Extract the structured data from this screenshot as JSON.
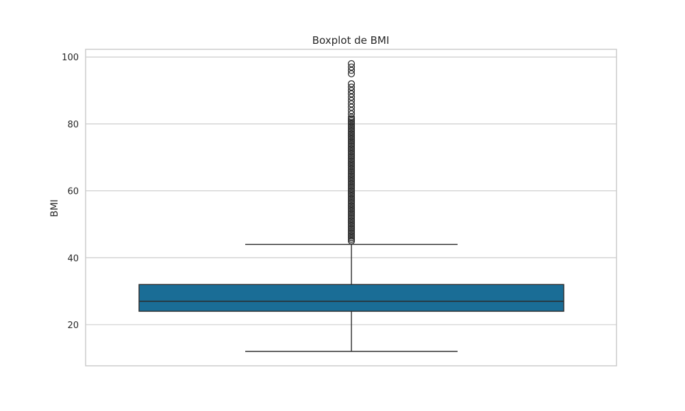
{
  "chart_data": {
    "type": "box",
    "title": "Boxplot de BMI",
    "xlabel": "",
    "ylabel": "BMI",
    "ylim": [
      7.7,
      102.3
    ],
    "yticks": [
      20,
      40,
      60,
      80,
      100
    ],
    "grid": true,
    "box": {
      "whisker_low": 12,
      "q1": 24,
      "median": 27,
      "q3": 32,
      "whisker_high": 44
    },
    "outliers": [
      45,
      45.5,
      46,
      46.5,
      47,
      47.5,
      48,
      48.5,
      49,
      49.5,
      50,
      50.5,
      51,
      51.5,
      52,
      52.5,
      53,
      53.5,
      54,
      54.5,
      55,
      55.5,
      56,
      56.5,
      57,
      57.5,
      58,
      58.5,
      59,
      59.5,
      60,
      60.5,
      61,
      61.5,
      62,
      62.5,
      63,
      63.5,
      64,
      64.5,
      65,
      65.5,
      66,
      66.5,
      67,
      67.5,
      68,
      68.5,
      69,
      69.5,
      70,
      70.5,
      71,
      71.5,
      72,
      72.5,
      73,
      73.5,
      74,
      74.5,
      75,
      75.5,
      76,
      76.5,
      77,
      77.5,
      78,
      78.5,
      79,
      79.5,
      80,
      80.5,
      81,
      81.5,
      82,
      83,
      84,
      85,
      86,
      87,
      88,
      89,
      90,
      91,
      92,
      95,
      96,
      97,
      98
    ],
    "colors": {
      "box_fill": "#1a6d96",
      "line": "#2b2b2b",
      "grid": "#cccccc",
      "frame": "#cccccc"
    }
  }
}
